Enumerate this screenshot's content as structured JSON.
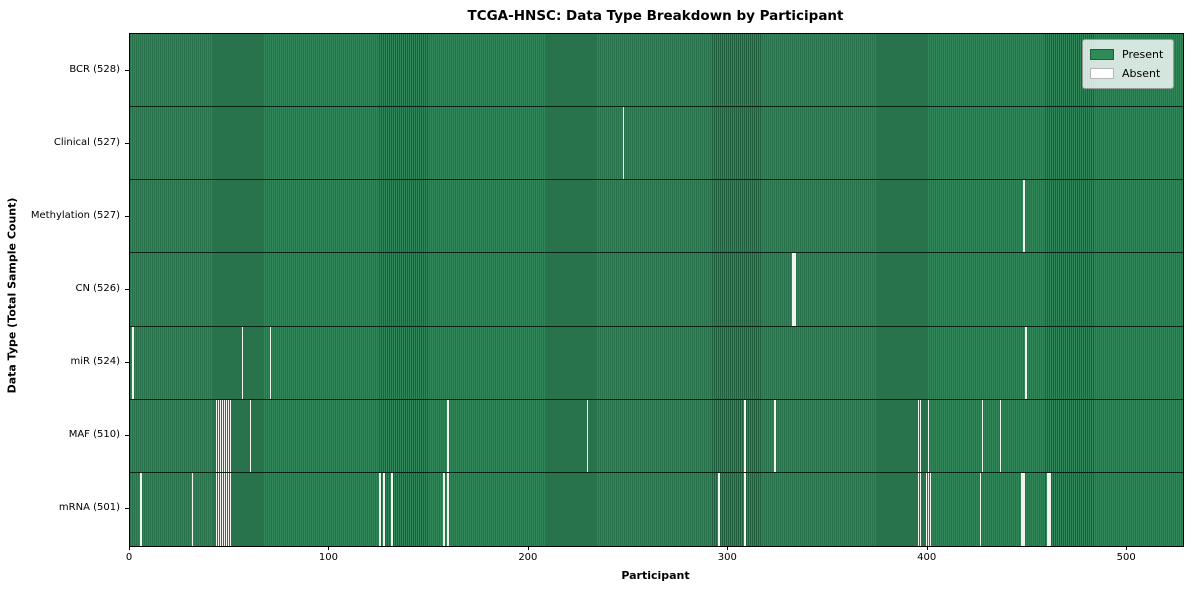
{
  "chart_data": {
    "type": "heatmap",
    "title": "TCGA-HNSC: Data Type Breakdown by Participant",
    "xlabel": "Participant",
    "ylabel": "Data Type (Total Sample Count)",
    "x_max": 528,
    "x_ticks": [
      0,
      100,
      200,
      300,
      400,
      500
    ],
    "legend_position": "upper right",
    "legend": [
      {
        "label": "Present",
        "color": "#2e8b57"
      },
      {
        "label": "Absent",
        "color": "#ffffff"
      }
    ],
    "rows": [
      {
        "name": "BCR",
        "count": 528,
        "label": "BCR (528)",
        "absent": []
      },
      {
        "name": "Clinical",
        "count": 527,
        "label": "Clinical (527)",
        "absent": [
          247
        ]
      },
      {
        "name": "Methylation",
        "count": 527,
        "label": "Methylation (527)",
        "absent": [
          448
        ]
      },
      {
        "name": "CN",
        "count": 526,
        "label": "CN (526)",
        "absent": [
          332,
          333
        ]
      },
      {
        "name": "miR",
        "count": 524,
        "label": "miR (524)",
        "absent": [
          1,
          56,
          70,
          449
        ]
      },
      {
        "name": "MAF",
        "count": 510,
        "label": "MAF (510)",
        "absent": [
          43,
          44,
          45,
          46,
          47,
          48,
          49,
          50,
          60,
          159,
          229,
          308,
          323,
          395,
          396,
          400,
          427,
          436
        ]
      },
      {
        "name": "mRNA",
        "count": 501,
        "label": "mRNA (501)",
        "absent": [
          5,
          31,
          43,
          44,
          45,
          46,
          47,
          48,
          49,
          50,
          125,
          127,
          131,
          157,
          159,
          295,
          308,
          395,
          396,
          399,
          400,
          401,
          426,
          447,
          448,
          460,
          461
        ]
      }
    ]
  }
}
